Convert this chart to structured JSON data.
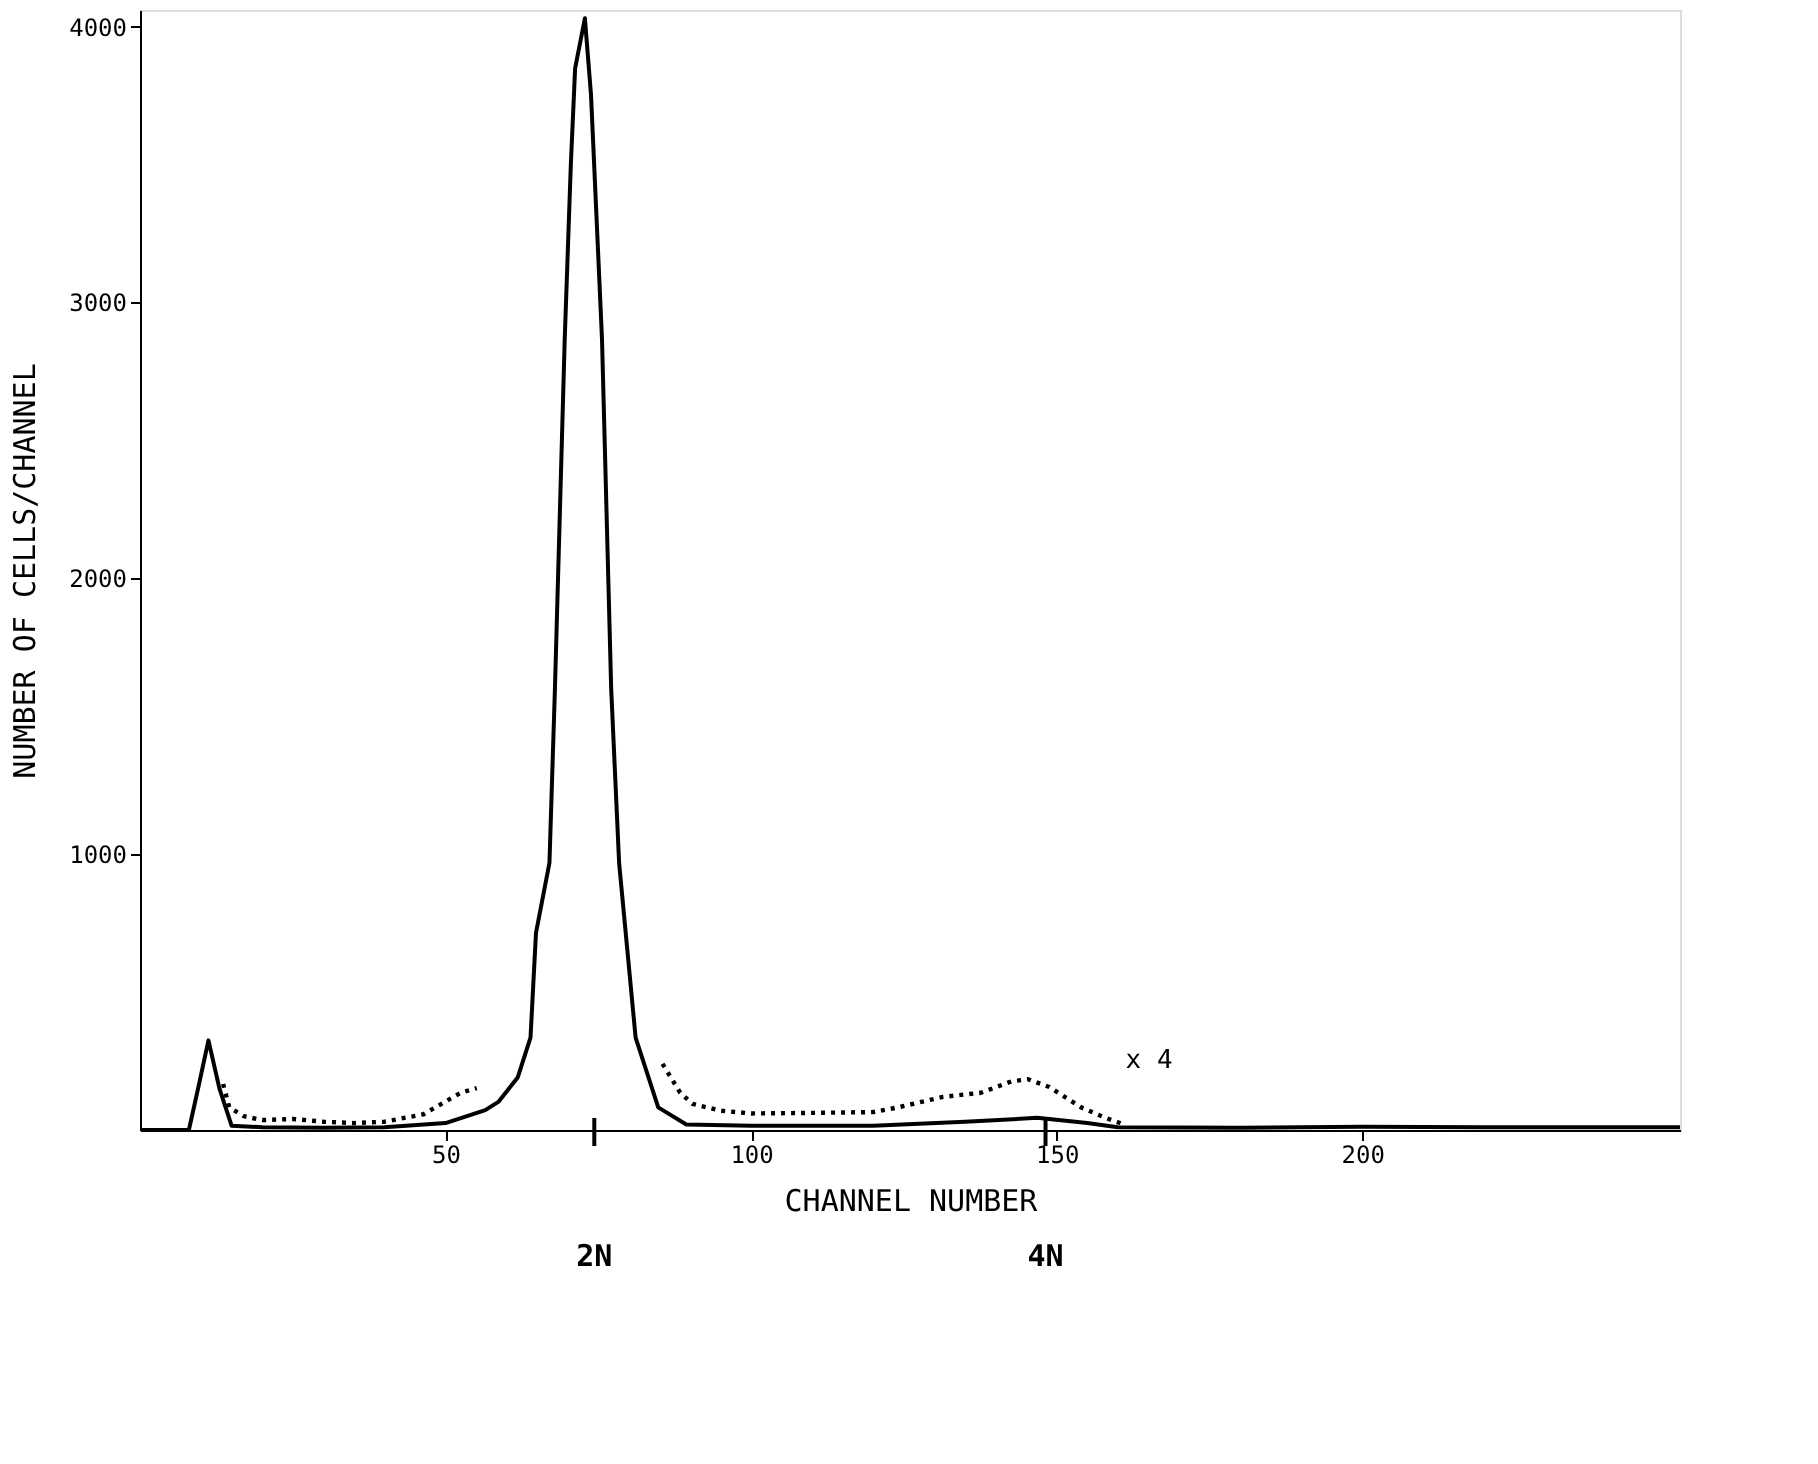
{
  "chart_data": {
    "type": "line",
    "xlabel": "CHANNEL NUMBER",
    "ylabel": "NUMBER OF CELLS/CHANNEL",
    "xlim": [
      0,
      252
    ],
    "ylim": [
      0,
      4060
    ],
    "xticks": [
      50,
      100,
      150,
      200
    ],
    "yticks": [
      1000,
      2000,
      3000,
      4000
    ],
    "grid": false,
    "marker": "none",
    "series": [
      {
        "color": "#000000",
        "line_style": "solid",
        "x": [
          0,
          4,
          8,
          9.5,
          11.2,
          13,
          15,
          20,
          30,
          40,
          50,
          56.5,
          58.7,
          61.8,
          63.9,
          64.8,
          67,
          67.9,
          69.5,
          70.5,
          71.2,
          72.8,
          73.8,
          75.6,
          77.1,
          78.4,
          81.1,
          84.8,
          89.4,
          100,
          120,
          135,
          146.8,
          155,
          160,
          180,
          200,
          220,
          252
        ],
        "values": [
          0,
          0,
          0,
          150,
          325,
          150,
          15,
          10,
          8,
          10,
          25,
          72,
          103,
          190,
          335,
          715,
          968,
          1601,
          2867,
          3500,
          3848,
          4030,
          3753,
          2867,
          1601,
          968,
          335,
          82,
          20,
          15,
          15,
          30,
          44,
          25,
          10,
          8,
          12,
          10,
          10
        ]
      },
      {
        "color": "#000000",
        "line_style": "dotted",
        "x": [
          13.6,
          14.6,
          17,
          20,
          25,
          30,
          35,
          40,
          46.4,
          52.5,
          55.1,
          70,
          85.5,
          88.4,
          90.4,
          95,
          100,
          110,
          120,
          124,
          131.4,
          137.6,
          142.7,
          145.3,
          148.8,
          154,
          158,
          161
        ],
        "values": [
          167,
          82,
          50,
          36,
          40,
          30,
          25,
          30,
          57,
          135,
          152,
          null,
          240,
          135,
          95,
          70,
          60,
          62,
          65,
          82,
          120,
          135,
          177,
          184,
          156,
          82,
          44,
          20
        ]
      }
    ],
    "annotations": [
      "x 4",
      "2N",
      "4N"
    ]
  }
}
